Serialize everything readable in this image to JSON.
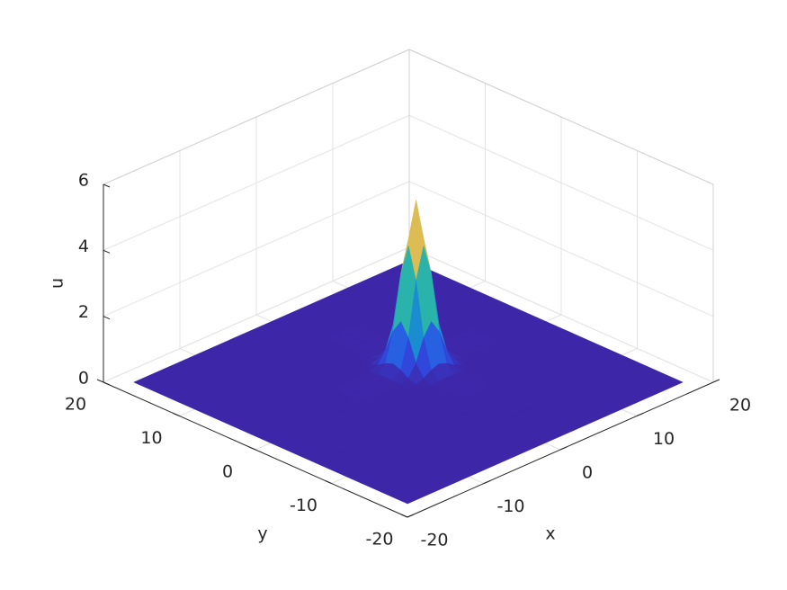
{
  "chart_data": {
    "type": "surface",
    "xlabel": "x",
    "ylabel": "y",
    "zlabel": "u",
    "xlim": [
      -20,
      20
    ],
    "ylim": [
      -20,
      20
    ],
    "zlim": [
      0,
      6
    ],
    "xticks": [
      -20,
      -10,
      0,
      10,
      20
    ],
    "yticks": [
      -20,
      -10,
      0,
      10,
      20
    ],
    "zticks": [
      0,
      2,
      4,
      6
    ],
    "grid": true,
    "colormap": [
      "#3e26a8",
      "#2d4fe8",
      "#1d86d4",
      "#0ea7c6",
      "#38b99e",
      "#92bf73",
      "#d9ba56",
      "#fcce2e",
      "#f9fb0e"
    ],
    "x": [
      -18,
      -12,
      -6,
      -1,
      0,
      1,
      2,
      3,
      4,
      5,
      6,
      7,
      12,
      18
    ],
    "y": [
      -18,
      -12,
      -6,
      -2,
      -1,
      0,
      1,
      2,
      3,
      4,
      5,
      6,
      12,
      18
    ],
    "z": [
      [
        0,
        0,
        0,
        0,
        0,
        0,
        0,
        0,
        0,
        0,
        0,
        0,
        0,
        0
      ],
      [
        0,
        0,
        0,
        0,
        0,
        0,
        0,
        0,
        0,
        0,
        0,
        0,
        0,
        0
      ],
      [
        0,
        0,
        0,
        0,
        0,
        0,
        0,
        0,
        0,
        0,
        0,
        0,
        0,
        0
      ],
      [
        0,
        0,
        0,
        0,
        0,
        0.01,
        0.03,
        0.04,
        0.03,
        0.01,
        0,
        0,
        0,
        0
      ],
      [
        0,
        0,
        0,
        0,
        0.02,
        0.11,
        0.26,
        0.35,
        0.26,
        0.11,
        0.02,
        0,
        0,
        0
      ],
      [
        0,
        0,
        0,
        0.01,
        0.11,
        0.47,
        1.14,
        1.53,
        1.14,
        0.47,
        0.11,
        0.01,
        0,
        0
      ],
      [
        0,
        0,
        0,
        0.03,
        0.26,
        1.14,
        2.77,
        3.72,
        2.77,
        1.14,
        0.26,
        0.03,
        0,
        0
      ],
      [
        0,
        0,
        0,
        0.04,
        0.35,
        1.53,
        3.72,
        5,
        3.72,
        1.53,
        0.35,
        0.04,
        0,
        0
      ],
      [
        0,
        0,
        0,
        0.03,
        0.26,
        1.14,
        2.77,
        3.72,
        2.77,
        1.14,
        0.26,
        0.03,
        0,
        0
      ],
      [
        0,
        0,
        0,
        0.01,
        0.11,
        0.47,
        1.14,
        1.53,
        1.14,
        0.47,
        0.11,
        0.01,
        0,
        0
      ],
      [
        0,
        0,
        0,
        0,
        0.02,
        0.11,
        0.26,
        0.35,
        0.26,
        0.11,
        0.02,
        0,
        0,
        0
      ],
      [
        0,
        0,
        0,
        0,
        0,
        0.01,
        0.03,
        0.04,
        0.03,
        0.01,
        0,
        0,
        0,
        0
      ],
      [
        0,
        0,
        0,
        0,
        0,
        0,
        0,
        0,
        0,
        0,
        0,
        0,
        0,
        0
      ],
      [
        0,
        0,
        0,
        0,
        0,
        0,
        0,
        0,
        0,
        0,
        0,
        0,
        0,
        0
      ]
    ]
  }
}
